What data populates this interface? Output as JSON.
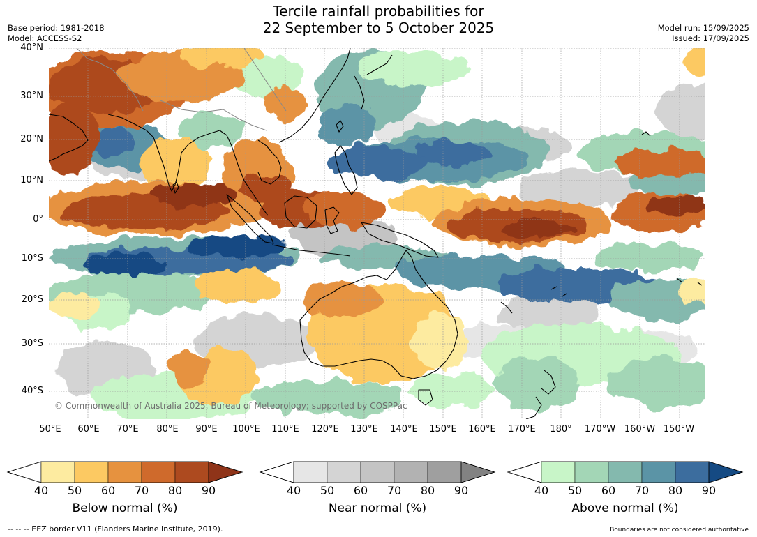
{
  "title": {
    "line1": "Tercile rainfall probabilities for",
    "line2": "22 September to 5 October 2025"
  },
  "meta_left": {
    "base_period": "Base period: 1981-2018",
    "model": "Model: ACCESS-S2"
  },
  "meta_right": {
    "model_run": "Model run: 15/09/2025",
    "issued": "Issued: 17/09/2025"
  },
  "map": {
    "copyright": "© Commonwealth of Australia 2025, Bureau of Meteorology; supported by COSPPac",
    "lat_labels": [
      "40°N",
      "30°N",
      "20°N",
      "10°N",
      "0°",
      "10°S",
      "20°S",
      "30°S",
      "40°S"
    ],
    "lon_labels": [
      "50°E",
      "60°E",
      "70°E",
      "80°E",
      "90°E",
      "100°E",
      "110°E",
      "120°E",
      "130°E",
      "140°E",
      "150°E",
      "160°E",
      "170°E",
      "180°",
      "170°W",
      "160°W",
      "150°W"
    ],
    "colors": {
      "below": [
        "#fdeba0",
        "#fcc962",
        "#e6923f",
        "#cf6a2c",
        "#ad4a1f",
        "#8f3419"
      ],
      "near": [
        "#e6e6e6",
        "#d4d4d4",
        "#c4c4c4",
        "#b2b2b2",
        "#9f9f9f",
        "#828282"
      ],
      "above": [
        "#c8f5c8",
        "#a3d6b6",
        "#84b9ae",
        "#5b94a6",
        "#3c6d9e",
        "#154a83"
      ],
      "land": "#000000",
      "border": "#888888"
    }
  },
  "colorbars": {
    "below": {
      "title": "Below normal (%)",
      "ticks": [
        "40",
        "50",
        "60",
        "70",
        "80",
        "90"
      ]
    },
    "near": {
      "title": "Near normal (%)",
      "ticks": [
        "40",
        "50",
        "60",
        "70",
        "80",
        "90"
      ]
    },
    "above": {
      "title": "Above normal (%)",
      "ticks": [
        "40",
        "50",
        "60",
        "70",
        "80",
        "90"
      ]
    }
  },
  "footer": {
    "left": "--  --  -- EEZ border V11 (Flanders Marine Institute, 2019).",
    "right": "Boundaries are not considered authoritative"
  }
}
